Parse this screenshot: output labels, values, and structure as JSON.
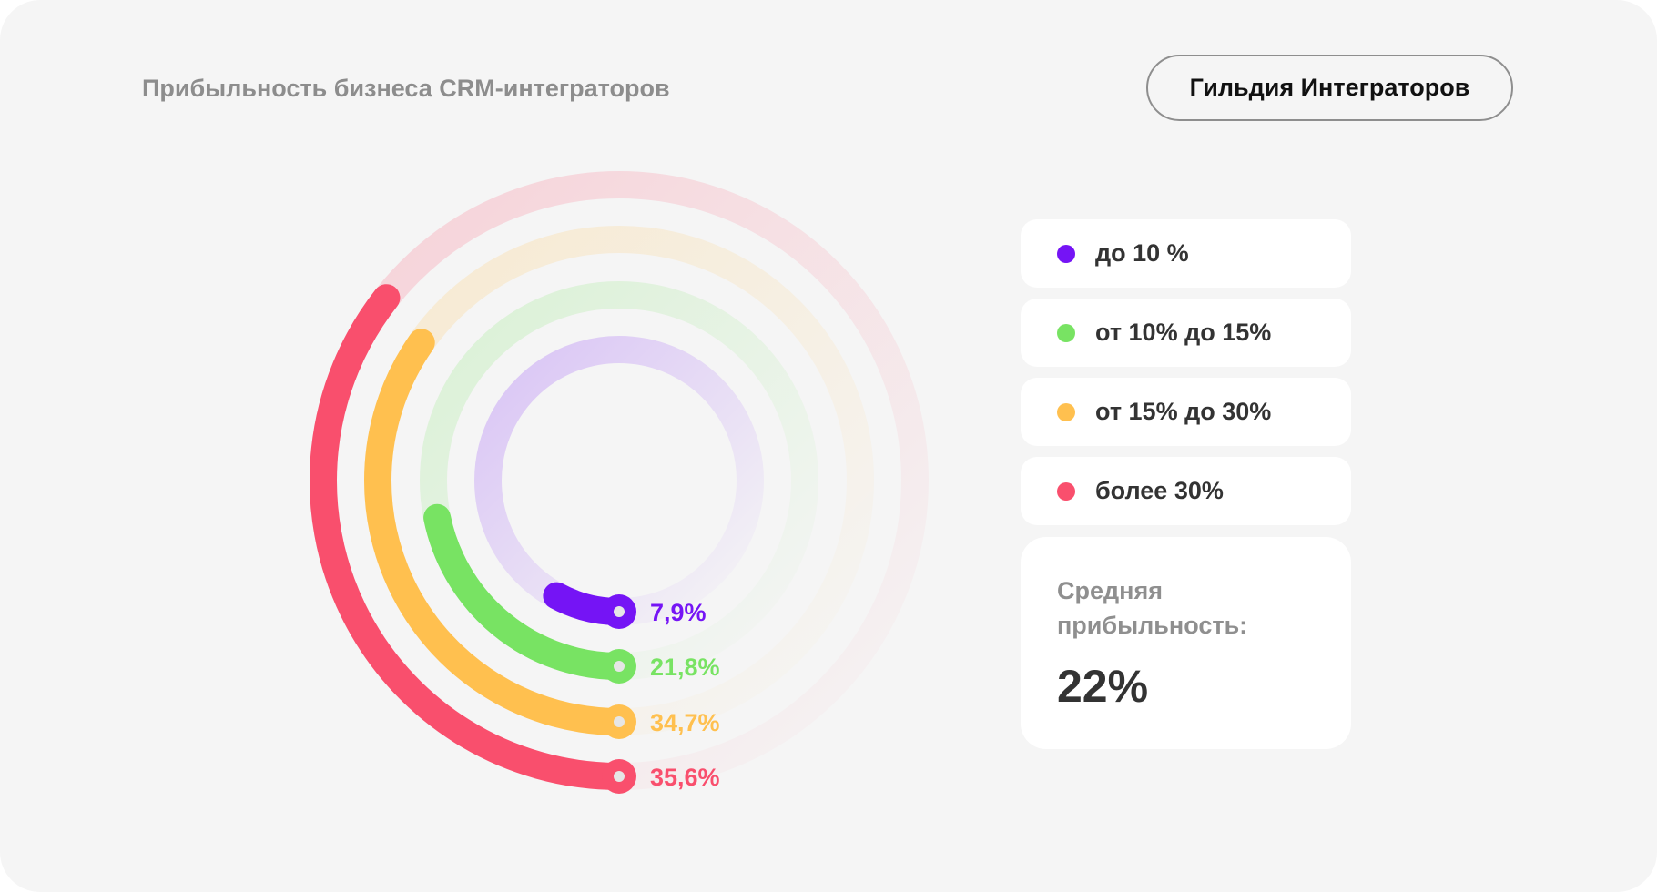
{
  "header": {
    "title": "Прибыльность бизнеса CRM-интеграторов",
    "brand_button": "Гильдия Интеграторов"
  },
  "chart_data": {
    "type": "radial-bar",
    "unit": "% of circle",
    "series": [
      {
        "legend": "до 10 %",
        "value": 7.9,
        "label": "7,9%",
        "color": "#7514f5"
      },
      {
        "legend": "от 10% до 15%",
        "value": 21.8,
        "label": "21,8%",
        "color": "#78e363"
      },
      {
        "legend": "от 15% до 30%",
        "value": 34.7,
        "label": "34,7%",
        "color": "#ffc04f"
      },
      {
        "legend": "более 30%",
        "value": 35.6,
        "label": "35,6%",
        "color": "#f94f6d"
      }
    ]
  },
  "legend": {
    "items": [
      "до 10 %",
      "от 10% до 15%",
      "от 15% до 30%",
      "более 30%"
    ]
  },
  "average": {
    "label": "Средняя прибыльность:",
    "value": "22%"
  }
}
